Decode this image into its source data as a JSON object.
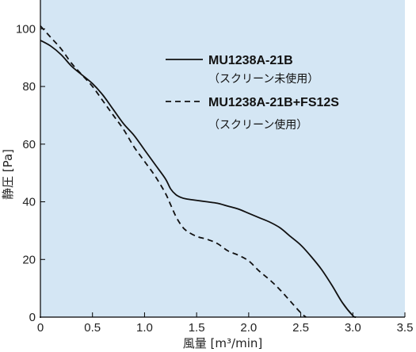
{
  "chart_data": {
    "type": "line",
    "title": "",
    "xlabel": "風量 [m³/min]",
    "ylabel": "静圧 [Pa]",
    "xlim": [
      0,
      3.5
    ],
    "ylim": [
      0,
      110
    ],
    "xticks": [
      "0",
      "0.5",
      "1.0",
      "1.5",
      "2.0",
      "2.5",
      "3.0",
      "3.5"
    ],
    "yticks": [
      "0",
      "20",
      "40",
      "60",
      "80",
      "100"
    ],
    "grid": false,
    "background": "#d4e6f4",
    "legend_position": "top-right",
    "series": [
      {
        "name": "MU1238A-21B",
        "note": "（スクリーン未使用）",
        "style": "solid",
        "x": [
          0,
          0.1,
          0.2,
          0.3,
          0.4,
          0.5,
          0.6,
          0.7,
          0.8,
          0.9,
          1.0,
          1.1,
          1.2,
          1.25,
          1.3,
          1.35,
          1.4,
          1.5,
          1.6,
          1.7,
          1.8,
          1.9,
          2.0,
          2.1,
          2.2,
          2.3,
          2.4,
          2.5,
          2.6,
          2.7,
          2.8,
          2.9,
          3.0,
          3.03
        ],
        "y": [
          96,
          94,
          91,
          87,
          84,
          81,
          77,
          72,
          67,
          63,
          58,
          53,
          48,
          44.5,
          42.5,
          41.5,
          41,
          40.5,
          40,
          39.5,
          38.5,
          37.5,
          36,
          34.5,
          33,
          31,
          28,
          25,
          21,
          16.5,
          11,
          5,
          0.5,
          0
        ]
      },
      {
        "name": "MU1238A-21B+FS12S",
        "note": "（スクリーン使用）",
        "style": "dashed",
        "x": [
          0,
          0.1,
          0.2,
          0.3,
          0.4,
          0.5,
          0.6,
          0.7,
          0.8,
          0.9,
          1.0,
          1.1,
          1.2,
          1.25,
          1.3,
          1.35,
          1.4,
          1.5,
          1.6,
          1.7,
          1.8,
          1.9,
          2.0,
          2.1,
          2.2,
          2.3,
          2.4,
          2.5,
          2.55
        ],
        "y": [
          101,
          97,
          93,
          88,
          84,
          80,
          75,
          70,
          65,
          59,
          54,
          49,
          43,
          39,
          35,
          32,
          30,
          28,
          27,
          25.5,
          23,
          21.5,
          19.5,
          16,
          13,
          9.5,
          5.5,
          1.5,
          0
        ]
      }
    ]
  }
}
